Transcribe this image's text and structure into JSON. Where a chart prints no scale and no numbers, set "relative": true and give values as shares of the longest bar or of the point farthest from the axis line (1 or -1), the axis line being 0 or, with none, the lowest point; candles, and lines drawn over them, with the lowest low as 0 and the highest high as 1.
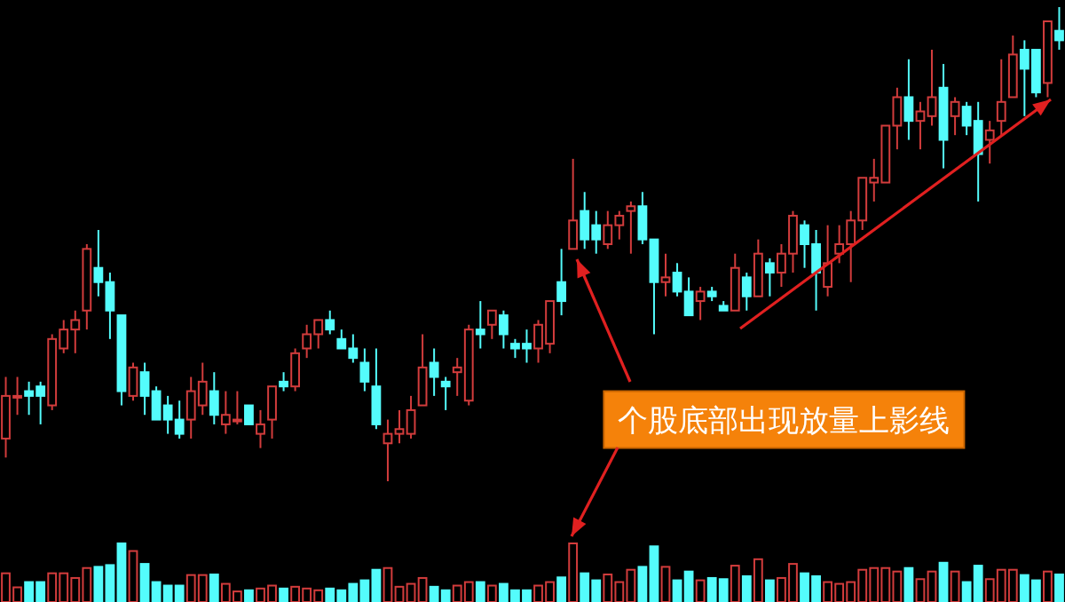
{
  "chart_data": [
    {
      "type": "candlestick",
      "relative": true,
      "categories": [
        null,
        null,
        null,
        null,
        null,
        null,
        null,
        null,
        null,
        null,
        null,
        null,
        null,
        null,
        null,
        null,
        null,
        null,
        null,
        null,
        null,
        null,
        null,
        null,
        null,
        null,
        null,
        null,
        null,
        null,
        null,
        null,
        null,
        null,
        null,
        null,
        null,
        null,
        null,
        null,
        null,
        null,
        null,
        null,
        null,
        null,
        null,
        null,
        null,
        null,
        null,
        null,
        null,
        null,
        null,
        null,
        null,
        null,
        null,
        null,
        null,
        null,
        null,
        null,
        null,
        null,
        null,
        null,
        null,
        null,
        null,
        null,
        null,
        null,
        null,
        null,
        null,
        null,
        null,
        null,
        null,
        null,
        null,
        null,
        null,
        null,
        null,
        null,
        null,
        null,
        null,
        null
      ],
      "ohlc": [
        [
          0.09,
          0.22,
          0.05,
          0.18
        ],
        [
          0.18,
          0.22,
          0.14,
          0.18
        ],
        [
          0.19,
          0.21,
          0.14,
          0.18
        ],
        [
          0.2,
          0.21,
          0.12,
          0.18
        ],
        [
          0.16,
          0.31,
          0.15,
          0.3
        ],
        [
          0.28,
          0.34,
          0.27,
          0.32
        ],
        [
          0.32,
          0.36,
          0.27,
          0.34
        ],
        [
          0.36,
          0.5,
          0.32,
          0.49
        ],
        [
          0.45,
          0.53,
          0.39,
          0.42
        ],
        [
          0.42,
          0.44,
          0.3,
          0.36
        ],
        [
          0.35,
          0.35,
          0.16,
          0.19
        ],
        [
          0.18,
          0.25,
          0.17,
          0.24
        ],
        [
          0.23,
          0.25,
          0.14,
          0.18
        ],
        [
          0.19,
          0.2,
          0.13,
          0.13
        ],
        [
          0.16,
          0.18,
          0.1,
          0.13
        ],
        [
          0.13,
          0.17,
          0.09,
          0.1
        ],
        [
          0.13,
          0.22,
          0.09,
          0.19
        ],
        [
          0.16,
          0.25,
          0.14,
          0.21
        ],
        [
          0.19,
          0.23,
          0.12,
          0.14
        ],
        [
          0.12,
          0.19,
          0.1,
          0.14
        ],
        [
          0.13,
          0.19,
          0.12,
          0.13
        ],
        [
          0.16,
          0.16,
          0.12,
          0.12
        ],
        [
          0.1,
          0.15,
          0.07,
          0.12
        ],
        [
          0.13,
          0.2,
          0.09,
          0.2
        ],
        [
          0.21,
          0.23,
          0.19,
          0.2
        ],
        [
          0.2,
          0.28,
          0.19,
          0.27
        ],
        [
          0.28,
          0.33,
          0.26,
          0.31
        ],
        [
          0.31,
          0.34,
          0.28,
          0.34
        ],
        [
          0.34,
          0.36,
          0.31,
          0.32
        ],
        [
          0.3,
          0.32,
          0.28,
          0.28
        ],
        [
          0.28,
          0.31,
          0.25,
          0.26
        ],
        [
          0.25,
          0.28,
          0.19,
          0.21
        ],
        [
          0.2,
          0.28,
          0.11,
          0.12
        ],
        [
          0.08,
          0.13,
          0,
          0.1
        ],
        [
          0.1,
          0.15,
          0.08,
          0.11
        ],
        [
          0.1,
          0.18,
          0.09,
          0.15
        ],
        [
          0.16,
          0.31,
          0.16,
          0.24
        ],
        [
          0.25,
          0.28,
          0.18,
          0.22
        ],
        [
          0.21,
          0.22,
          0.15,
          0.2
        ],
        [
          0.23,
          0.26,
          0.18,
          0.24
        ],
        [
          0.17,
          0.33,
          0.16,
          0.32
        ],
        [
          0.32,
          0.38,
          0.28,
          0.31
        ],
        [
          0.33,
          0.36,
          0.3,
          0.36
        ],
        [
          0.35,
          0.36,
          0.28,
          0.31
        ],
        [
          0.29,
          0.3,
          0.26,
          0.28
        ],
        [
          0.29,
          0.32,
          0.25,
          0.28
        ],
        [
          0.28,
          0.34,
          0.25,
          0.33
        ],
        [
          0.29,
          0.38,
          0.27,
          0.38
        ],
        [
          0.42,
          0.49,
          0.35,
          0.38
        ],
        [
          0.49,
          0.68,
          0.49,
          0.55
        ],
        [
          0.57,
          0.61,
          0.49,
          0.51
        ],
        [
          0.54,
          0.57,
          0.48,
          0.51
        ],
        [
          0.5,
          0.57,
          0.49,
          0.54
        ],
        [
          0.54,
          0.57,
          0.51,
          0.56
        ],
        [
          0.57,
          0.59,
          0.48,
          0.58
        ],
        [
          0.58,
          0.61,
          0.5,
          0.51
        ],
        [
          0.51,
          0.51,
          0.31,
          0.42
        ],
        [
          0.42,
          0.48,
          0.39,
          0.43
        ],
        [
          0.44,
          0.46,
          0.39,
          0.4
        ],
        [
          0.4,
          0.43,
          0.35,
          0.35
        ],
        [
          0.38,
          0.41,
          0.34,
          0.4
        ],
        [
          0.4,
          0.41,
          0.38,
          0.39
        ],
        [
          0.37,
          0.38,
          0.36,
          0.36
        ],
        [
          0.36,
          0.48,
          0.36,
          0.45
        ],
        [
          0.43,
          0.44,
          0.36,
          0.39
        ],
        [
          0.39,
          0.51,
          0.39,
          0.48
        ],
        [
          0.46,
          0.47,
          0.39,
          0.44
        ],
        [
          0.44,
          0.5,
          0.41,
          0.48
        ],
        [
          0.48,
          0.57,
          0.44,
          0.56
        ],
        [
          0.54,
          0.55,
          0.45,
          0.5
        ],
        [
          0.5,
          0.53,
          0.36,
          0.44
        ],
        [
          0.41,
          0.54,
          0.39,
          0.46
        ],
        [
          0.48,
          0.54,
          0.46,
          0.5
        ],
        [
          0.5,
          0.57,
          0.42,
          0.55
        ],
        [
          0.55,
          0.64,
          0.53,
          0.64
        ],
        [
          0.63,
          0.68,
          0.59,
          0.64
        ],
        [
          0.63,
          0.75,
          0.63,
          0.75
        ],
        [
          0.75,
          0.83,
          0.7,
          0.81
        ],
        [
          0.81,
          0.89,
          0.72,
          0.76
        ],
        [
          0.76,
          0.8,
          0.7,
          0.78
        ],
        [
          0.77,
          0.91,
          0.75,
          0.81
        ],
        [
          0.83,
          0.88,
          0.66,
          0.72
        ],
        [
          0.77,
          0.81,
          0.73,
          0.8
        ],
        [
          0.79,
          0.8,
          0.73,
          0.75
        ],
        [
          0.76,
          0.8,
          0.59,
          0.69
        ],
        [
          0.72,
          0.76,
          0.67,
          0.74
        ],
        [
          0.76,
          0.89,
          0.73,
          0.8
        ],
        [
          0.81,
          0.94,
          0.81,
          0.9
        ],
        [
          0.91,
          0.93,
          0.77,
          0.87
        ],
        [
          0.91,
          0.91,
          0.81,
          0.82
        ],
        [
          0.84,
          0.97,
          0.81,
          0.97
        ],
        [
          0.95,
          1.0,
          0.91,
          0.93
        ]
      ],
      "annotations": [
        "个股底部出现放量上影线"
      ]
    },
    {
      "type": "bar",
      "relative": true,
      "categories": [
        null,
        null,
        null,
        null,
        null,
        null,
        null,
        null,
        null,
        null,
        null,
        null,
        null,
        null,
        null,
        null,
        null,
        null,
        null,
        null,
        null,
        null,
        null,
        null,
        null,
        null,
        null,
        null,
        null,
        null,
        null,
        null,
        null,
        null,
        null,
        null,
        null,
        null,
        null,
        null,
        null,
        null,
        null,
        null,
        null,
        null,
        null,
        null,
        null,
        null,
        null,
        null,
        null,
        null,
        null,
        null,
        null,
        null,
        null,
        null,
        null,
        null,
        null,
        null,
        null,
        null,
        null,
        null,
        null,
        null,
        null,
        null,
        null,
        null,
        null,
        null,
        null,
        null,
        null,
        null,
        null,
        null,
        null,
        null,
        null,
        null,
        null,
        null,
        null,
        null,
        null,
        null
      ],
      "values": [
        0.49,
        0.25,
        0.34,
        0.34,
        0.49,
        0.49,
        0.41,
        0.58,
        0.6,
        0.63,
        1.0,
        0.87,
        0.65,
        0.34,
        0.28,
        0.28,
        0.46,
        0.46,
        0.47,
        0.31,
        0.18,
        0.2,
        0.23,
        0.28,
        0.23,
        0.26,
        0.23,
        0.2,
        0.23,
        0.2,
        0.31,
        0.37,
        0.55,
        0.58,
        0.26,
        0.31,
        0.41,
        0.26,
        0.2,
        0.28,
        0.34,
        0.34,
        0.28,
        0.31,
        0.2,
        0.2,
        0.28,
        0.34,
        0.42,
        1.0,
        0.49,
        0.37,
        0.47,
        0.34,
        0.55,
        0.6,
        0.95,
        0.6,
        0.37,
        0.52,
        0.37,
        0.41,
        0.39,
        0.62,
        0.44,
        0.73,
        0.37,
        0.41,
        0.65,
        0.49,
        0.44,
        0.34,
        0.31,
        0.34,
        0.55,
        0.58,
        0.58,
        0.52,
        0.58,
        0.39,
        0.52,
        0.67,
        0.52,
        0.34,
        0.62,
        0.39,
        0.55,
        0.55,
        0.46,
        0.37,
        0.52,
        0.47
      ],
      "colors": [
        "#d23c3c",
        "#d23c3c",
        "#54fcfc",
        "#54fcfc",
        "#d23c3c",
        "#d23c3c",
        "#d23c3c",
        "#d23c3c",
        "#54fcfc",
        "#54fcfc",
        "#54fcfc",
        "#d23c3c",
        "#54fcfc",
        "#54fcfc",
        "#54fcfc",
        "#54fcfc",
        "#d23c3c",
        "#d23c3c",
        "#54fcfc",
        "#d23c3c",
        "#d23c3c",
        "#54fcfc",
        "#d23c3c",
        "#d23c3c",
        "#54fcfc",
        "#d23c3c",
        "#d23c3c",
        "#d23c3c",
        "#54fcfc",
        "#54fcfc",
        "#54fcfc",
        "#54fcfc",
        "#54fcfc",
        "#d23c3c",
        "#d23c3c",
        "#d23c3c",
        "#d23c3c",
        "#54fcfc",
        "#54fcfc",
        "#d23c3c",
        "#d23c3c",
        "#54fcfc",
        "#d23c3c",
        "#54fcfc",
        "#54fcfc",
        "#54fcfc",
        "#d23c3c",
        "#d23c3c",
        "#54fcfc",
        "#d23c3c",
        "#54fcfc",
        "#54fcfc",
        "#d23c3c",
        "#d23c3c",
        "#d23c3c",
        "#54fcfc",
        "#54fcfc",
        "#d23c3c",
        "#54fcfc",
        "#54fcfc",
        "#d23c3c",
        "#54fcfc",
        "#54fcfc",
        "#d23c3c",
        "#54fcfc",
        "#d23c3c",
        "#54fcfc",
        "#d23c3c",
        "#d23c3c",
        "#54fcfc",
        "#54fcfc",
        "#d23c3c",
        "#d23c3c",
        "#d23c3c",
        "#d23c3c",
        "#d23c3c",
        "#d23c3c",
        "#d23c3c",
        "#54fcfc",
        "#d23c3c",
        "#d23c3c",
        "#54fcfc",
        "#d23c3c",
        "#54fcfc",
        "#54fcfc",
        "#d23c3c",
        "#d23c3c",
        "#d23c3c",
        "#54fcfc",
        "#54fcfc",
        "#d23c3c",
        "#54fcfc"
      ]
    }
  ]
}
